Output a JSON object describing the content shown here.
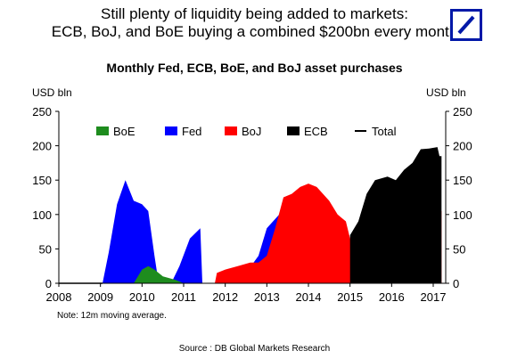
{
  "header": {
    "headline_line1": "Still plenty of liquidity being added to markets:",
    "headline_line2": "ECB, BoJ, and BoE buying a combined $200bn every month",
    "logo_color": "#0018A8"
  },
  "footer": {
    "note": "Note: 12m moving average.",
    "source": "Source : DB Global Markets Research"
  },
  "chart_data": {
    "type": "area",
    "title": "Monthly Fed, ECB, BoE, and BoJ asset purchases",
    "ylabel_left": "USD bln",
    "ylabel_right": "USD bln",
    "ylim": [
      0,
      250
    ],
    "yticks": [
      0,
      50,
      100,
      150,
      200,
      250
    ],
    "xlim": [
      2008,
      2017.3
    ],
    "xticks": [
      2008,
      2009,
      2010,
      2011,
      2012,
      2013,
      2014,
      2015,
      2016,
      2017
    ],
    "grid": false,
    "legend_position": "top",
    "legend": [
      {
        "name": "BoE",
        "color": "#1E8C1E",
        "kind": "swatch"
      },
      {
        "name": "Fed",
        "color": "#0000FF",
        "kind": "swatch"
      },
      {
        "name": "BoJ",
        "color": "#FF0000",
        "kind": "swatch"
      },
      {
        "name": "ECB",
        "color": "#000000",
        "kind": "swatch"
      },
      {
        "name": "Total",
        "color": "#000000",
        "kind": "line"
      }
    ],
    "series": [
      {
        "name": "Fed",
        "color": "#0000FF",
        "base_index": 0,
        "points": [
          [
            2009.05,
            0
          ],
          [
            2009.2,
            45
          ],
          [
            2009.4,
            115
          ],
          [
            2009.6,
            150
          ],
          [
            2009.8,
            120
          ],
          [
            2010.0,
            115
          ],
          [
            2010.15,
            105
          ],
          [
            2010.3,
            40
          ],
          [
            2010.4,
            0
          ]
        ]
      },
      {
        "name": "Fed",
        "color": "#0000FF",
        "base_index": 0,
        "points": [
          [
            2010.7,
            0
          ],
          [
            2010.9,
            25
          ],
          [
            2011.15,
            65
          ],
          [
            2011.4,
            80
          ],
          [
            2011.45,
            0
          ]
        ]
      },
      {
        "name": "Fed",
        "color": "#0000FF",
        "base_index": 1,
        "points": [
          [
            2012.5,
            15
          ],
          [
            2012.8,
            40
          ],
          [
            2013.0,
            80
          ],
          [
            2013.3,
            100
          ],
          [
            2013.6,
            90
          ],
          [
            2013.9,
            95
          ],
          [
            2014.2,
            80
          ],
          [
            2014.5,
            60
          ],
          [
            2014.8,
            30
          ],
          [
            2014.9,
            0
          ]
        ]
      },
      {
        "name": "BoE",
        "color": "#1E8C1E",
        "base_index": 0,
        "points": [
          [
            2009.8,
            0
          ],
          [
            2010.0,
            20
          ],
          [
            2010.15,
            25
          ],
          [
            2010.3,
            20
          ],
          [
            2010.5,
            10
          ],
          [
            2010.8,
            5
          ],
          [
            2011.0,
            0
          ]
        ]
      },
      {
        "name": "BoE",
        "color": "#1E8C1E",
        "base_index": 0,
        "points": [
          [
            2011.75,
            0
          ],
          [
            2012.0,
            5
          ],
          [
            2012.3,
            10
          ],
          [
            2012.6,
            15
          ],
          [
            2012.9,
            15
          ],
          [
            2013.2,
            12
          ],
          [
            2013.5,
            10
          ],
          [
            2013.8,
            5
          ],
          [
            2014.0,
            0
          ]
        ]
      },
      {
        "name": "BoE",
        "color": "#1E8C1E",
        "base_index": 0,
        "points": [
          [
            2016.6,
            0
          ],
          [
            2016.65,
            14
          ],
          [
            2017.1,
            14
          ],
          [
            2017.15,
            0
          ]
        ]
      },
      {
        "name": "BoJ",
        "color": "#FF0000",
        "base_index": 0,
        "points": [
          [
            2011.75,
            0
          ],
          [
            2011.8,
            15
          ],
          [
            2012.0,
            20
          ],
          [
            2012.3,
            25
          ],
          [
            2012.6,
            30
          ],
          [
            2012.8,
            30
          ],
          [
            2013.0,
            40
          ],
          [
            2013.2,
            80
          ],
          [
            2013.4,
            125
          ],
          [
            2013.6,
            130
          ],
          [
            2013.8,
            140
          ],
          [
            2014.0,
            145
          ],
          [
            2014.2,
            140
          ],
          [
            2014.5,
            120
          ],
          [
            2014.7,
            100
          ],
          [
            2014.9,
            90
          ],
          [
            2015.0,
            65
          ],
          [
            2015.3,
            70
          ],
          [
            2015.6,
            80
          ],
          [
            2015.9,
            85
          ],
          [
            2016.1,
            90
          ],
          [
            2016.4,
            90
          ],
          [
            2016.7,
            100
          ],
          [
            2017.1,
            105
          ],
          [
            2017.2,
            105
          ]
        ]
      },
      {
        "name": "ECB",
        "color": "#000000",
        "base_index": 0,
        "points": [
          [
            2015.0,
            70
          ],
          [
            2015.2,
            90
          ],
          [
            2015.4,
            130
          ],
          [
            2015.6,
            150
          ],
          [
            2015.9,
            155
          ],
          [
            2016.1,
            150
          ],
          [
            2016.3,
            165
          ],
          [
            2016.5,
            175
          ],
          [
            2016.7,
            195
          ],
          [
            2016.9,
            196
          ],
          [
            2017.1,
            198
          ],
          [
            2017.15,
            185
          ],
          [
            2017.2,
            185
          ]
        ]
      }
    ],
    "total_line": [
      [
        2008.0,
        0
      ],
      [
        2009.05,
        0
      ]
    ]
  }
}
